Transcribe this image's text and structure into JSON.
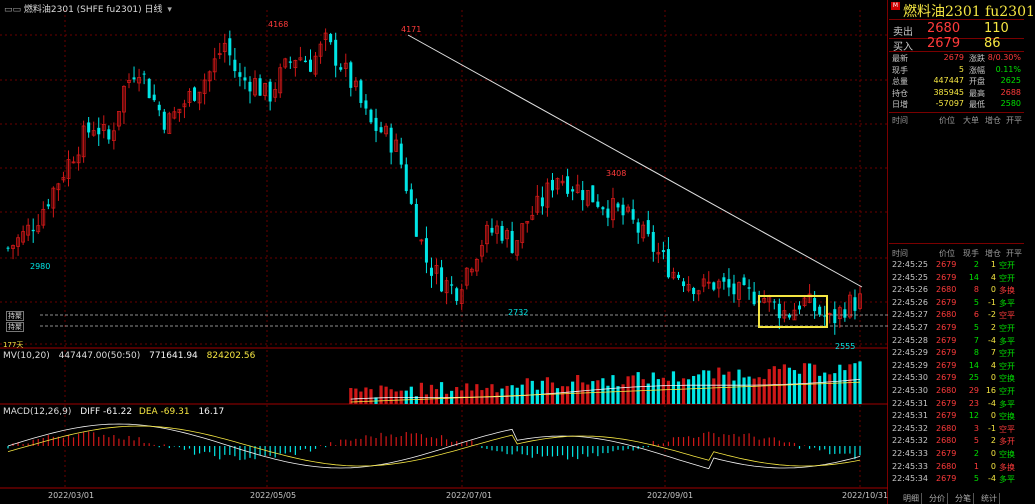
{
  "header": {
    "title": "燃料油2301 (SHFE fu2301) 日线",
    "dropdown_glyph": "▾"
  },
  "indicators": {
    "mv_label": "MV(10,20)",
    "mv_vals": [
      "447447.00(50:50)",
      "771641.94",
      "824202.56"
    ],
    "macd_label": "MACD(12,26,9)",
    "macd_diff": "DIFF -61.22",
    "macd_dea": "DEA -69.31",
    "macd_val": "16.17"
  },
  "chart_labels": {
    "hi1": "4168",
    "hi2": "4171",
    "mid_hi": "3408",
    "lo1": "2980",
    "lo2": "2732",
    "lo3": "2555",
    "line1": "持聚",
    "line2": "持聚",
    "days": "177天",
    "dates": [
      "2022/03/01",
      "2022/05/05",
      "2022/07/01",
      "2022/09/01",
      "2022/10/31"
    ]
  },
  "colors": {
    "up": "#00e5e5",
    "down": "#d01818",
    "grid": "#6a0000",
    "highlight_box": "#f5e642",
    "ma1": "#f5f5f5",
    "ma2": "#f5e642"
  },
  "chart_data": {
    "type": "candlestick",
    "x_axis_ticks": [
      "2022/03/01",
      "2022/05/05",
      "2022/07/01",
      "2022/09/01",
      "2022/10/31"
    ],
    "y_range": [
      2450,
      4300
    ],
    "annotated_high": 4171,
    "annotated_low": 2555,
    "series": [
      {
        "name": "close",
        "values": [
          2980,
          3050,
          3150,
          3300,
          3450,
          3600,
          3700,
          3600,
          3900,
          4050,
          3850,
          3700,
          3800,
          3900,
          4000,
          4168,
          3950,
          3950,
          3850,
          4000,
          4100,
          4050,
          4171,
          4050,
          3900,
          3700,
          3650,
          3550,
          3200,
          2900,
          2800,
          2732,
          2900,
          3050,
          3100,
          3000,
          3150,
          3250,
          3408,
          3350,
          3300,
          3250,
          3200,
          3150,
          3050,
          2950,
          2850,
          2800,
          2750,
          2780,
          2740,
          2700,
          2720,
          2650,
          2600,
          2680,
          2620,
          2555,
          2650,
          2679
        ]
      }
    ]
  },
  "quote": {
    "title": "燃料油2301  fu2301",
    "ask_label": "卖出",
    "ask_price": "2680",
    "ask_vol": "110",
    "bid_label": "买入",
    "bid_price": "2679",
    "bid_vol": "86",
    "stats": [
      {
        "l1": "最新",
        "v1": "2679",
        "c1": "#ff3b3b",
        "l2": "涨跌",
        "v2": "8/0.30%",
        "c2": "#ff3b3b"
      },
      {
        "l1": "现手",
        "v1": "5",
        "c1": "#f5e642",
        "l2": "涨幅",
        "v2": "0.11%",
        "c2": "#00e000"
      },
      {
        "l1": "总量",
        "v1": "447447",
        "c1": "#f5e642",
        "l2": "开盘",
        "v2": "2625",
        "c2": "#00e000"
      },
      {
        "l1": "持仓",
        "v1": "385945",
        "c1": "#f5e642",
        "l2": "最高",
        "v2": "2688",
        "c2": "#ff3b3b"
      },
      {
        "l1": "日增",
        "v1": "-57097",
        "c1": "#f5e642",
        "l2": "最低",
        "v2": "2580",
        "c2": "#00e000"
      }
    ],
    "tick_head1": [
      "时间",
      "价位",
      "大单",
      "增仓",
      "开平"
    ],
    "tick_head2": [
      "时间",
      "价位",
      "现手",
      "增仓",
      "开平"
    ],
    "ticks": [
      {
        "t": "22:45:25",
        "p": "2679",
        "v": "2",
        "vc": "#00e000",
        "o": "1",
        "oc": "#f5e642",
        "k": "空开",
        "kc": "#00e000"
      },
      {
        "t": "22:45:25",
        "p": "2679",
        "v": "14",
        "vc": "#00e000",
        "o": "4",
        "oc": "#f5e642",
        "k": "空开",
        "kc": "#00e000"
      },
      {
        "t": "22:45:26",
        "p": "2680",
        "v": "8",
        "vc": "#ff3b3b",
        "o": "0",
        "oc": "#f5e642",
        "k": "多换",
        "kc": "#ff3b3b"
      },
      {
        "t": "22:45:26",
        "p": "2679",
        "v": "5",
        "vc": "#00e000",
        "o": "-1",
        "oc": "#f5e642",
        "k": "多平",
        "kc": "#00e000"
      },
      {
        "t": "22:45:27",
        "p": "2680",
        "v": "6",
        "vc": "#ff3b3b",
        "o": "-2",
        "oc": "#f5e642",
        "k": "空平",
        "kc": "#ff3b3b"
      },
      {
        "t": "22:45:27",
        "p": "2679",
        "v": "5",
        "vc": "#00e000",
        "o": "2",
        "oc": "#f5e642",
        "k": "空开",
        "kc": "#00e000"
      },
      {
        "t": "22:45:28",
        "p": "2679",
        "v": "7",
        "vc": "#00e000",
        "o": "-4",
        "oc": "#f5e642",
        "k": "多平",
        "kc": "#00e000"
      },
      {
        "t": "22:45:29",
        "p": "2679",
        "v": "8",
        "vc": "#00e000",
        "o": "7",
        "oc": "#f5e642",
        "k": "空开",
        "kc": "#00e000"
      },
      {
        "t": "22:45:29",
        "p": "2679",
        "v": "14",
        "vc": "#00e000",
        "o": "4",
        "oc": "#f5e642",
        "k": "空开",
        "kc": "#00e000"
      },
      {
        "t": "22:45:30",
        "p": "2679",
        "v": "25",
        "vc": "#00e000",
        "o": "0",
        "oc": "#f5e642",
        "k": "空换",
        "kc": "#00e000"
      },
      {
        "t": "22:45:30",
        "p": "2680",
        "v": "29",
        "vc": "#ff3b3b",
        "o": "16",
        "oc": "#f5e642",
        "k": "空开",
        "kc": "#00e000"
      },
      {
        "t": "22:45:31",
        "p": "2679",
        "v": "23",
        "vc": "#ff3b3b",
        "o": "-4",
        "oc": "#f5e642",
        "k": "多平",
        "kc": "#00e000"
      },
      {
        "t": "22:45:31",
        "p": "2679",
        "v": "12",
        "vc": "#00e000",
        "o": "0",
        "oc": "#f5e642",
        "k": "空换",
        "kc": "#00e000"
      },
      {
        "t": "22:45:32",
        "p": "2680",
        "v": "3",
        "vc": "#ff3b3b",
        "o": "-1",
        "oc": "#f5e642",
        "k": "空平",
        "kc": "#ff3b3b"
      },
      {
        "t": "22:45:32",
        "p": "2680",
        "v": "5",
        "vc": "#ff3b3b",
        "o": "2",
        "oc": "#f5e642",
        "k": "多开",
        "kc": "#ff3b3b"
      },
      {
        "t": "22:45:33",
        "p": "2679",
        "v": "2",
        "vc": "#00e000",
        "o": "0",
        "oc": "#f5e642",
        "k": "空换",
        "kc": "#00e000"
      },
      {
        "t": "22:45:33",
        "p": "2680",
        "v": "1",
        "vc": "#ff3b3b",
        "o": "0",
        "oc": "#f5e642",
        "k": "多换",
        "kc": "#ff3b3b"
      },
      {
        "t": "22:45:34",
        "p": "2679",
        "v": "5",
        "vc": "#00e000",
        "o": "-4",
        "oc": "#f5e642",
        "k": "多平",
        "kc": "#00e000"
      }
    ],
    "tabs": [
      "明细",
      "分价",
      "分笔",
      "统计"
    ]
  }
}
